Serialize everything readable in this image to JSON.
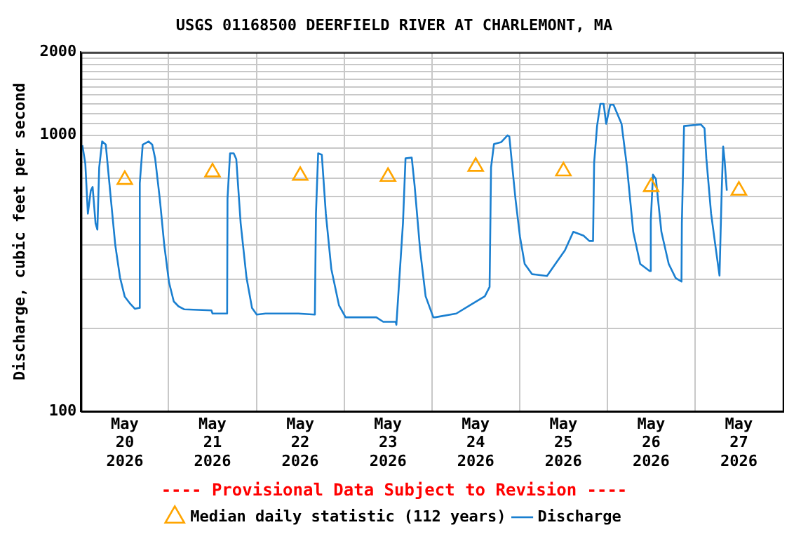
{
  "chart_data": {
    "type": "line",
    "title": "USGS 01168500 DEERFIELD RIVER AT CHARLEMONT, MA",
    "ylabel": "Discharge, cubic feet per second",
    "annotations": [
      "---- Provisional Data Subject to Revision ----"
    ],
    "log": "y",
    "grid": true,
    "legend": "bottom",
    "xlim": [
      "2026-05-20T00:00",
      "2026-05-28T00:00"
    ],
    "xticks": [
      {
        "value": "2026-05-20T00:00",
        "label": null
      },
      {
        "value": "2026-05-20T12:00",
        "label": "May 20 2026"
      },
      {
        "value": "2026-05-21T00:00",
        "label": null
      },
      {
        "value": "2026-05-21T12:00",
        "label": "May 21 2026"
      },
      {
        "value": "2026-05-22T00:00",
        "label": null
      },
      {
        "value": "2026-05-22T12:00",
        "label": "May 22 2026"
      },
      {
        "value": "2026-05-23T00:00",
        "label": null
      },
      {
        "value": "2026-05-23T12:00",
        "label": "May 23 2026"
      },
      {
        "value": "2026-05-24T00:00",
        "label": null
      },
      {
        "value": "2026-05-24T12:00",
        "label": "May 24 2026"
      },
      {
        "value": "2026-05-25T00:00",
        "label": null
      },
      {
        "value": "2026-05-25T12:00",
        "label": "May 25 2026"
      },
      {
        "value": "2026-05-26T00:00",
        "label": null
      },
      {
        "value": "2026-05-26T12:00",
        "label": "May 26 2026"
      },
      {
        "value": "2026-05-27T00:00",
        "label": null
      },
      {
        "value": "2026-05-27T12:00",
        "label": "May 27 2026"
      },
      {
        "value": "2026-05-28T00:00",
        "label": null
      }
    ],
    "ylim": [
      100,
      2000
    ],
    "yticks": [
      100,
      {
        "value": 200,
        "label": null
      },
      {
        "value": 300,
        "label": null
      },
      {
        "value": 400,
        "label": null
      },
      {
        "value": 500,
        "label": null
      },
      {
        "value": 600,
        "label": null
      },
      {
        "value": 700,
        "label": null
      },
      {
        "value": 800,
        "label": null
      },
      {
        "value": 900,
        "label": null
      },
      1000,
      {
        "value": 1100,
        "label": null
      },
      {
        "value": 1200,
        "label": null
      },
      {
        "value": 1300,
        "label": null
      },
      {
        "value": 1400,
        "label": null
      },
      {
        "value": 1500,
        "label": null
      },
      {
        "value": 1600,
        "label": null
      },
      {
        "value": 1700,
        "label": null
      },
      {
        "value": 1800,
        "label": null
      },
      {
        "value": 1900,
        "label": null
      },
      2000
    ],
    "series": [
      {
        "name": "Median daily statistic (112 years)",
        "type": "scatter",
        "marker": "triangle",
        "color": "#ffa500",
        "x": [
          "2026-05-20T12:00",
          "2026-05-21T12:00",
          "2026-05-22T12:00",
          "2026-05-23T12:00",
          "2026-05-24T12:00",
          "2026-05-25T12:00",
          "2026-05-26T12:00",
          "2026-05-27T12:00"
        ],
        "values": [
          690,
          735,
          714,
          708,
          770,
          741,
          650,
          631
        ]
      },
      {
        "name": "Discharge",
        "marker": "none",
        "color": "#1a7fd0",
        "x": [
          "2026-05-20T00:24",
          "2026-05-20T01:12",
          "2026-05-20T01:54",
          "2026-05-20T02:42",
          "2026-05-20T03:12",
          "2026-05-20T04:00",
          "2026-05-20T04:30",
          "2026-05-20T05:00",
          "2026-05-20T05:48",
          "2026-05-20T06:48",
          "2026-05-20T08:06",
          "2026-05-20T09:24",
          "2026-05-20T10:42",
          "2026-05-20T12:00",
          "2026-05-20T13:30",
          "2026-05-20T14:48",
          "2026-05-20T15:54",
          "2026-05-20T16:06",
          "2026-05-20T16:54",
          "2026-05-20T18:30",
          "2026-05-20T19:30",
          "2026-05-20T20:18",
          "2026-05-20T21:36",
          "2026-05-20T22:48",
          "2026-05-21T00:06",
          "2026-05-21T01:24",
          "2026-05-21T02:42",
          "2026-05-21T04:18",
          "2026-05-21T11:42",
          "2026-05-21T12:00",
          "2026-05-21T16:00",
          "2026-05-21T16:06",
          "2026-05-21T16:48",
          "2026-05-21T17:48",
          "2026-05-21T18:30",
          "2026-05-21T19:42",
          "2026-05-21T21:18",
          "2026-05-21T22:48",
          "2026-05-22T00:06",
          "2026-05-22T02:30",
          "2026-05-22T11:30",
          "2026-05-22T16:00",
          "2026-05-22T16:18",
          "2026-05-22T16:54",
          "2026-05-22T17:54",
          "2026-05-22T19:00",
          "2026-05-22T20:30",
          "2026-05-22T22:36",
          "2026-05-23T00:24",
          "2026-05-23T08:48",
          "2026-05-23T10:42",
          "2026-05-23T14:06",
          "2026-05-23T14:18",
          "2026-05-23T16:06",
          "2026-05-23T16:48",
          "2026-05-23T18:30",
          "2026-05-23T19:18",
          "2026-05-23T20:48",
          "2026-05-23T22:18",
          "2026-05-24T00:24",
          "2026-05-24T00:54",
          "2026-05-24T06:42",
          "2026-05-24T10:36",
          "2026-05-24T14:30",
          "2026-05-24T15:48",
          "2026-05-24T16:12",
          "2026-05-24T17:00",
          "2026-05-24T19:00",
          "2026-05-24T20:42",
          "2026-05-24T21:12",
          "2026-05-24T21:54",
          "2026-05-24T22:54",
          "2026-05-25T00:06",
          "2026-05-25T01:24",
          "2026-05-25T03:24",
          "2026-05-25T07:30",
          "2026-05-25T09:48",
          "2026-05-25T12:24",
          "2026-05-25T14:42",
          "2026-05-25T17:30",
          "2026-05-25T19:06",
          "2026-05-25T20:06",
          "2026-05-25T20:24",
          "2026-05-25T21:12",
          "2026-05-25T22:06",
          "2026-05-25T23:00",
          "2026-05-25T23:42",
          "2026-05-26T00:48",
          "2026-05-26T01:42",
          "2026-05-26T03:54",
          "2026-05-26T05:24",
          "2026-05-26T07:06",
          "2026-05-26T09:00",
          "2026-05-26T11:36",
          "2026-05-26T11:54",
          "2026-05-26T12:30",
          "2026-05-26T13:18",
          "2026-05-26T14:48",
          "2026-05-26T16:48",
          "2026-05-26T18:42",
          "2026-05-26T20:18",
          "2026-05-26T20:24",
          "2026-05-26T21:00",
          "2026-05-27T01:36",
          "2026-05-27T02:36",
          "2026-05-27T03:06",
          "2026-05-27T04:24",
          "2026-05-27T05:54",
          "2026-05-27T06:42",
          "2026-05-27T07:18",
          "2026-05-27T07:42",
          "2026-05-27T08:06",
          "2026-05-27T08:42"
        ],
        "values": [
          920,
          790,
          520,
          630,
          650,
          480,
          455,
          765,
          950,
          925,
          605,
          400,
          305,
          260,
          245,
          235,
          237,
          670,
          925,
          950,
          925,
          825,
          585,
          400,
          293,
          250,
          240,
          234,
          232,
          226,
          226,
          590,
          860,
          860,
          820,
          480,
          305,
          237,
          224,
          226,
          226,
          224,
          520,
          860,
          850,
          520,
          328,
          242,
          219,
          219,
          211,
          211,
          206,
          480,
          825,
          830,
          655,
          383,
          261,
          219,
          219,
          226,
          243,
          261,
          282,
          765,
          930,
          945,
          1000,
          990,
          795,
          585,
          430,
          342,
          314,
          309,
          342,
          383,
          447,
          433,
          414,
          414,
          795,
          1080,
          1300,
          1300,
          1100,
          1290,
          1290,
          1100,
          765,
          447,
          342,
          322,
          490,
          720,
          695,
          447,
          342,
          304,
          295,
          480,
          1080,
          1095,
          1060,
          825,
          520,
          370,
          310,
          630,
          910,
          810,
          630
        ]
      }
    ]
  }
}
